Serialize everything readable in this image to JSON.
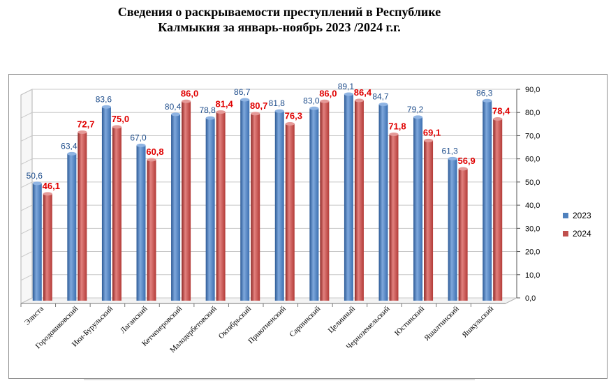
{
  "title": {
    "line1": "Сведения о раскрываемости   преступлений  в  Республике",
    "line2": "Калмыкия  за январь-ноябрь  2023 /2024 г.г."
  },
  "chart_data": {
    "type": "bar",
    "categories": [
      "Элиста",
      "Городовиковский",
      "Ики-Бурульский",
      "Лаганский",
      "Кетченеровский",
      "Малодербетовский",
      "Октябрьский",
      "Приютненский",
      "Сарпинский",
      "Целинный",
      "Черноземельский",
      "Юстинский",
      "Яшалтинский",
      "Яшкульский"
    ],
    "series": [
      {
        "name": "2023",
        "values": [
          50.6,
          63.4,
          83.6,
          67.0,
          80.4,
          78.8,
          86.7,
          81.8,
          83.0,
          89.1,
          84.7,
          79.2,
          61.3,
          86.3
        ],
        "labels": [
          "50,6",
          "63,4",
          "83,6",
          "67,0",
          "80,4",
          "78,8",
          "86,7",
          "81,8",
          "83,0",
          "89,1",
          "84,7",
          "79,2",
          "61,3",
          "86,3"
        ],
        "color": "#4f81bd",
        "label_color": "#1f4e8c"
      },
      {
        "name": "2024",
        "values": [
          46.1,
          72.7,
          75.0,
          60.8,
          86.0,
          81.4,
          80.7,
          76.3,
          86.0,
          86.4,
          71.8,
          69.1,
          56.9,
          78.4
        ],
        "labels": [
          "46,1",
          "72,7",
          "75,0",
          "60,8",
          "86,0",
          "81,4",
          "80,7",
          "76,3",
          "86,0",
          "86,4",
          "71,8",
          "69,1",
          "56,9",
          "78,4"
        ],
        "color": "#c0504d",
        "label_color": "#e00000"
      }
    ],
    "ylim": [
      0,
      90
    ],
    "yticks": [
      "0,0",
      "10,0",
      "20,0",
      "30,0",
      "40,0",
      "50,0",
      "60,0",
      "70,0",
      "80,0",
      "90,0"
    ],
    "grid": true,
    "legend": "right"
  }
}
